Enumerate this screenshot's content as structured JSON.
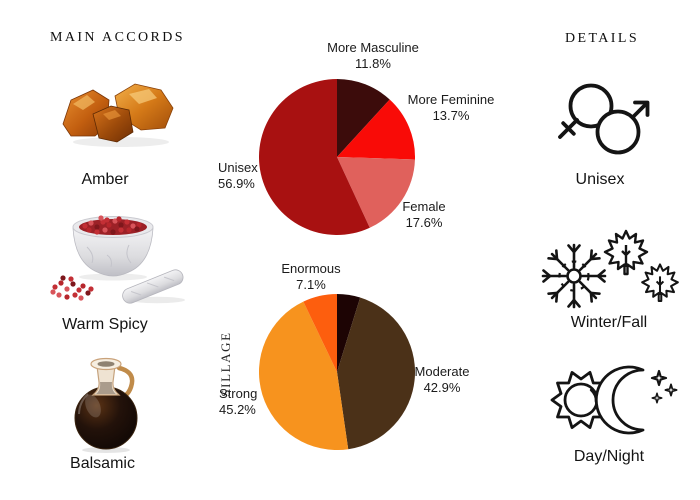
{
  "main_accords": {
    "title": "MAIN ACCORDS",
    "items": [
      {
        "label": "Amber",
        "icon": "amber-stones-image"
      },
      {
        "label": "Warm Spicy",
        "icon": "mortar-pestle-image"
      },
      {
        "label": "Balsamic",
        "icon": "balsamic-bottle-image"
      }
    ]
  },
  "details": {
    "title": "DETAILS",
    "items": [
      {
        "label": "Unisex",
        "icon": "gender-unisex-icon"
      },
      {
        "label": "Winter/Fall",
        "icon": "winter-fall-icon"
      },
      {
        "label": "Day/Night",
        "icon": "day-night-icon"
      }
    ]
  },
  "chart_data": [
    {
      "type": "pie",
      "name": "gender-votes",
      "start_angle_deg": -90,
      "direction": "clockwise",
      "labels_shown": true,
      "slices": [
        {
          "label": "More Masculine",
          "pct": "11.8%",
          "value": 11.8,
          "color": "#3c0c0b"
        },
        {
          "label": "More Feminine",
          "pct": "13.7%",
          "value": 13.7,
          "color": "#f90b07"
        },
        {
          "label": "Female",
          "pct": "17.6%",
          "value": 17.6,
          "color": "#e0615c"
        },
        {
          "label": "Unisex",
          "pct": "56.9%",
          "value": 56.9,
          "color": "#a81111"
        }
      ]
    },
    {
      "type": "pie",
      "name": "sillage",
      "title": "SILLAGE",
      "start_angle_deg": -90,
      "direction": "clockwise",
      "labels_shown": true,
      "slices": [
        {
          "label": "",
          "pct": "",
          "value": 4.8,
          "color": "#1d0404"
        },
        {
          "label": "Moderate",
          "pct": "42.9%",
          "value": 42.9,
          "color": "#4b3118"
        },
        {
          "label": "Strong",
          "pct": "45.2%",
          "value": 45.2,
          "color": "#f7931e"
        },
        {
          "label": "Enormous",
          "pct": "7.1%",
          "value": 7.1,
          "color": "#fd5e0e"
        }
      ]
    }
  ]
}
